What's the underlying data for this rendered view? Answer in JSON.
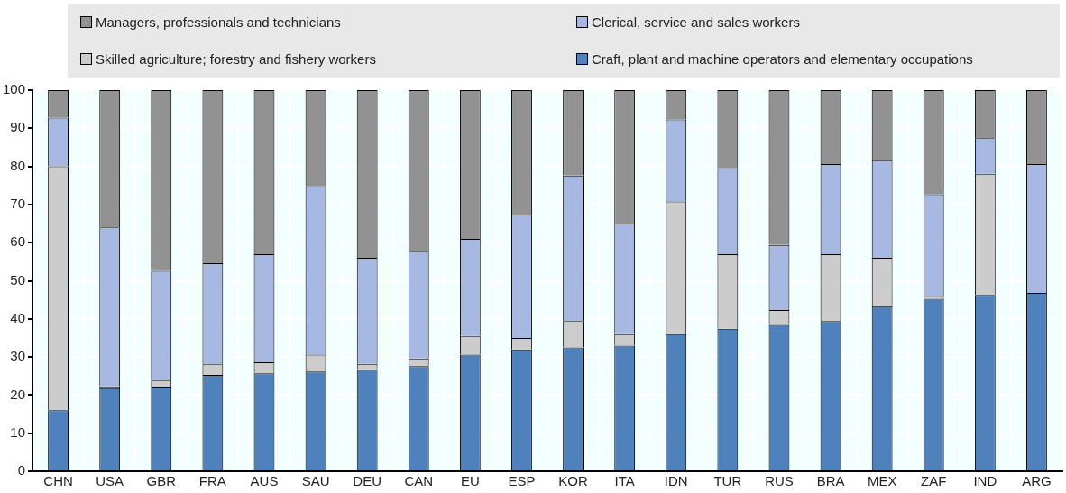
{
  "chart_data": {
    "type": "bar",
    "stacked": true,
    "categories": [
      "CHN",
      "USA",
      "GBR",
      "FRA",
      "AUS",
      "SAU",
      "DEU",
      "CAN",
      "EU",
      "ESP",
      "KOR",
      "ITA",
      "IDN",
      "TUR",
      "RUS",
      "BRA",
      "MEX",
      "ZAF",
      "IND",
      "ARG"
    ],
    "series": [
      {
        "name": "Craft, plant and machine operators and elementary occupations",
        "color": "#4f81bd",
        "values": [
          16,
          21.8,
          22.2,
          25.3,
          25.7,
          26.2,
          26.8,
          27.6,
          30.6,
          32,
          32.5,
          33,
          36,
          37.4,
          38.4,
          39.4,
          43.3,
          45.3,
          46.3,
          46.8
        ]
      },
      {
        "name": "Skilled agriculture; forestry and fishery workers",
        "color": "#cccccc",
        "values": [
          64,
          0.5,
          1.6,
          2.8,
          2.9,
          4.4,
          1.4,
          2,
          4.9,
          3,
          6.9,
          3,
          34.8,
          19.6,
          3.9,
          17.6,
          12.7,
          0.7,
          31.8,
          0
        ]
      },
      {
        "name": "Clerical, service and sales workers",
        "color": "#a7b9e3",
        "values": [
          12.8,
          41.7,
          28.8,
          26.5,
          28.4,
          44.2,
          27.8,
          28,
          25.5,
          32.4,
          38.2,
          29,
          21.5,
          22.5,
          17.1,
          23.6,
          25.6,
          26.7,
          9.3,
          33.8
        ]
      },
      {
        "name": "Managers, professionals and technicians",
        "color": "#929292",
        "values": [
          7.2,
          36,
          47.4,
          45.4,
          43,
          25.2,
          44,
          42.4,
          39,
          32.6,
          22.4,
          35,
          7.7,
          20.5,
          40.6,
          19.4,
          18.4,
          27.3,
          12.6,
          19.4
        ]
      }
    ],
    "ylim": [
      0,
      100
    ],
    "yticks": [
      0,
      10,
      20,
      30,
      40,
      50,
      60,
      70,
      80,
      90,
      100
    ],
    "grid": true,
    "legend": "top"
  }
}
